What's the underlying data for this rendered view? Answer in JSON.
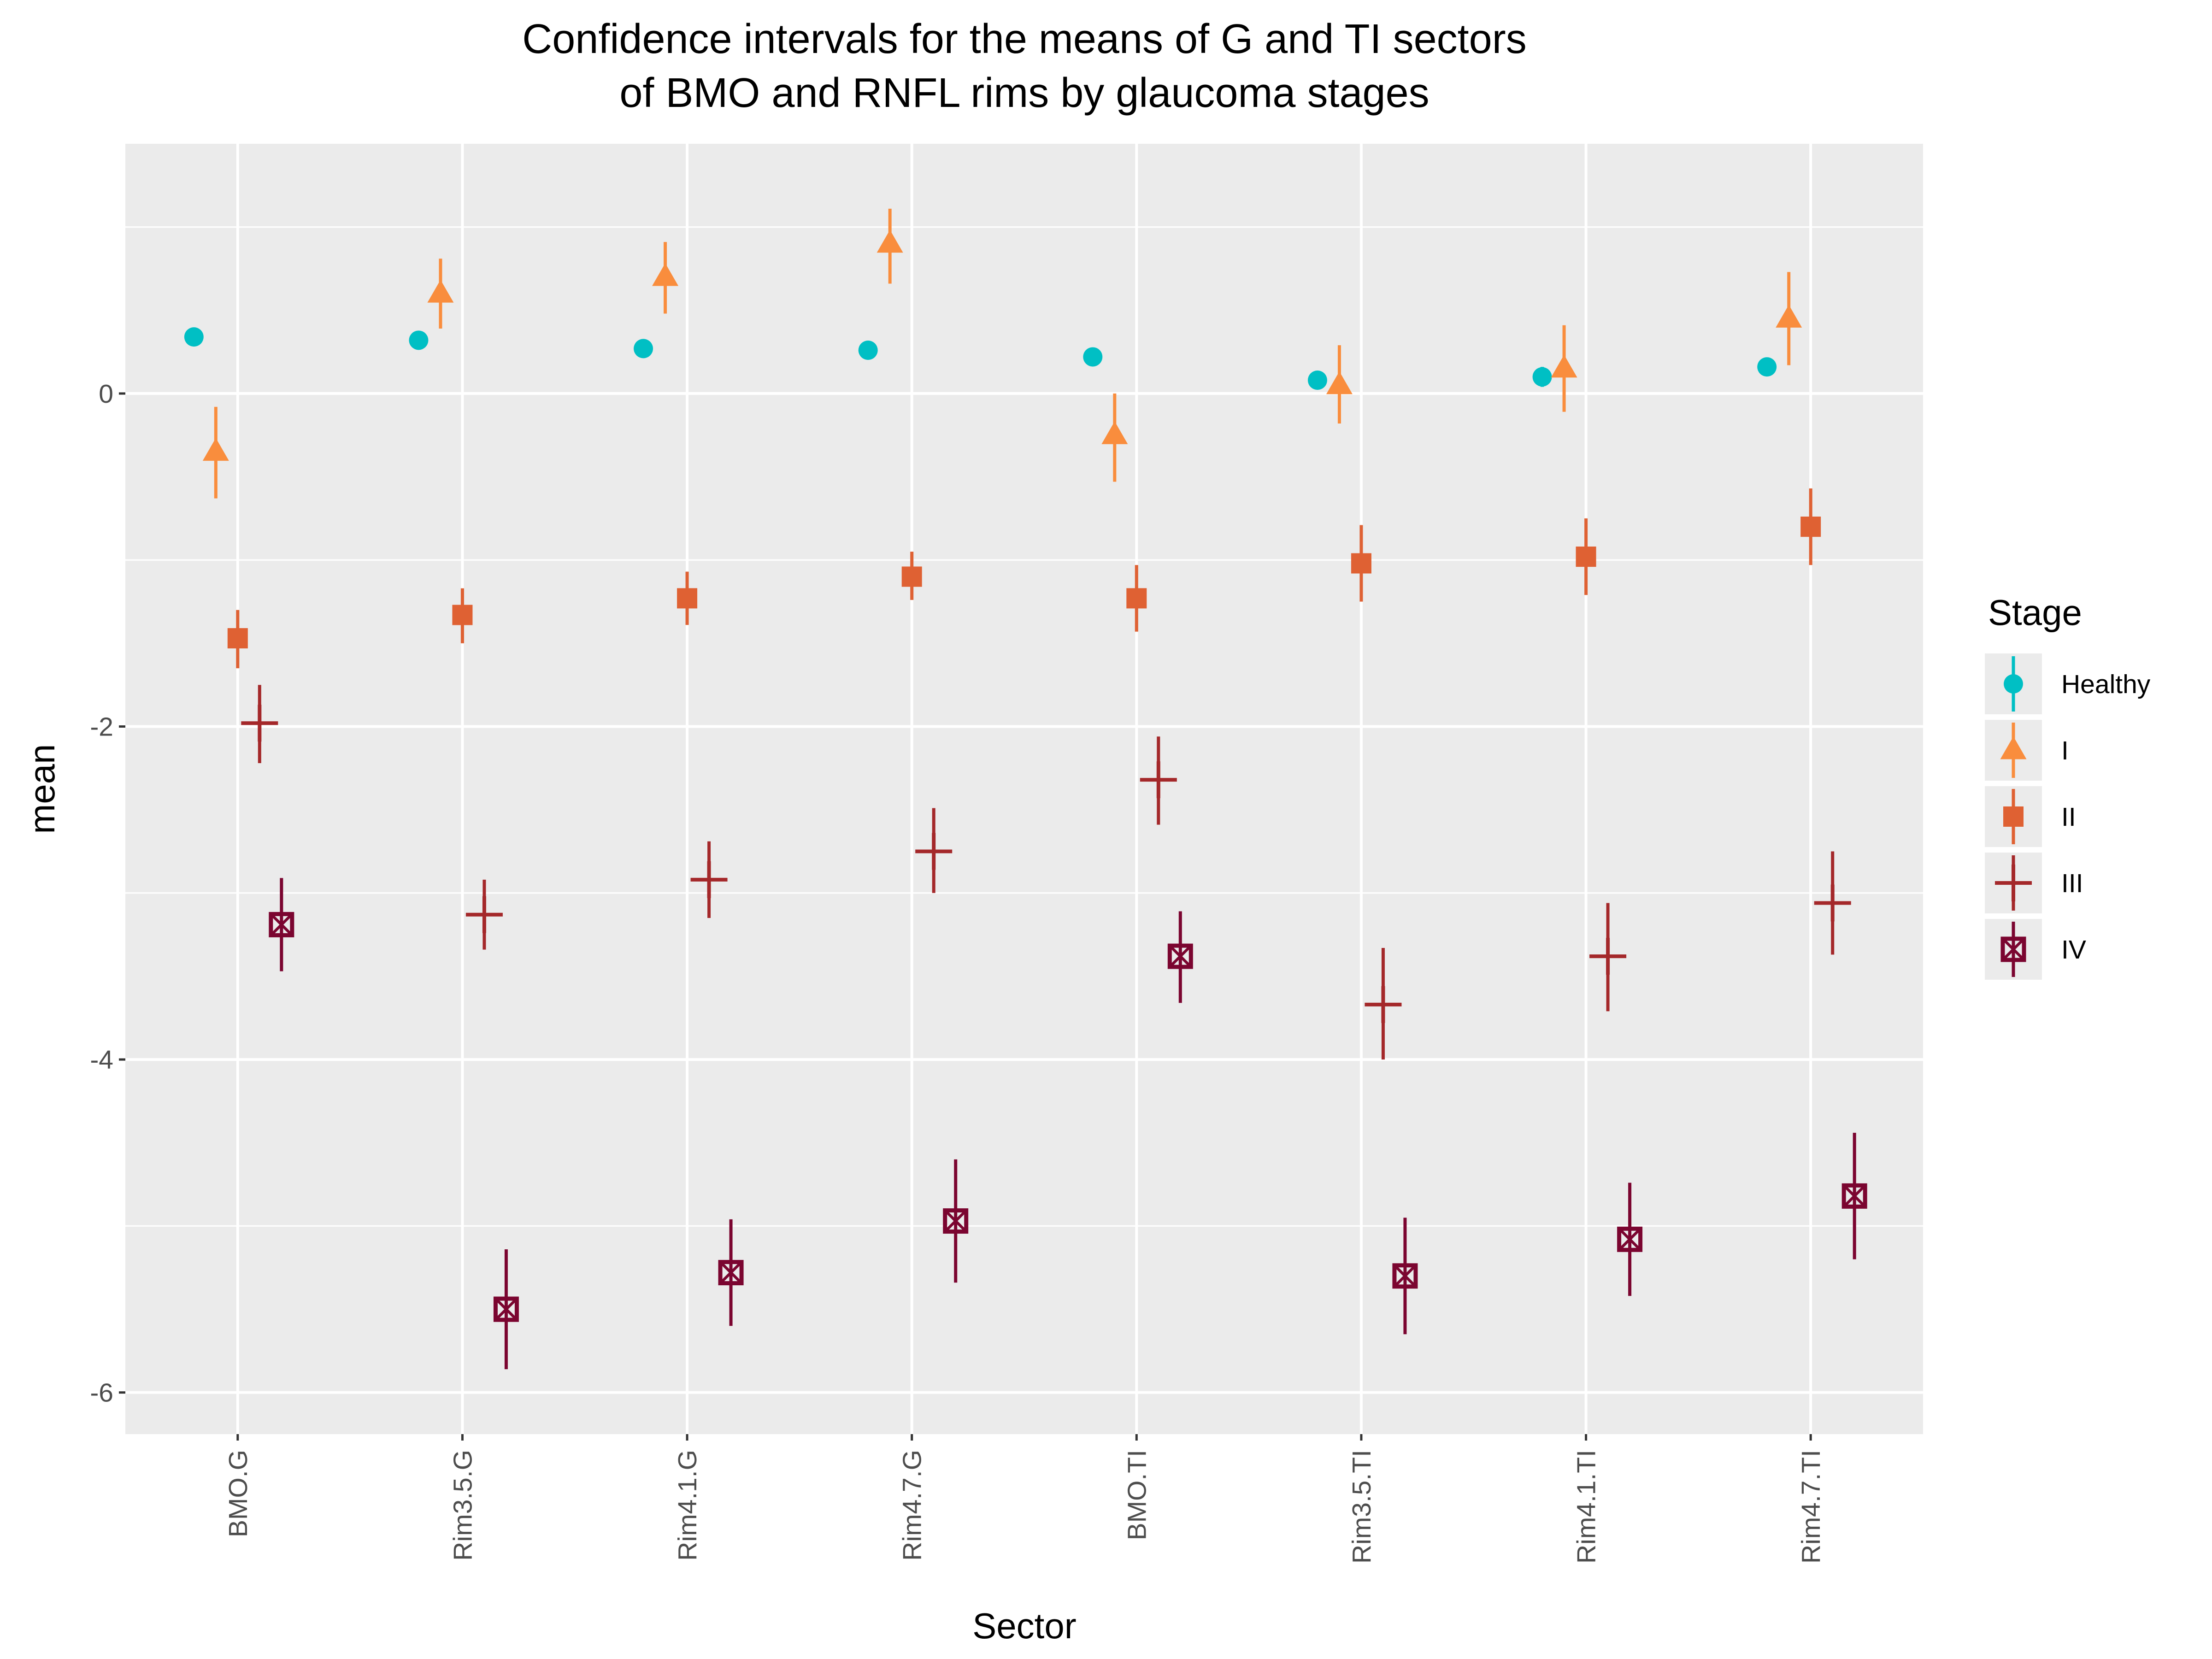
{
  "chart_data": {
    "type": "scatter",
    "title_lines": [
      "Confidence intervals for the means of G and TI sectors",
      "of BMO and RNFL rims by glaucoma stages"
    ],
    "xlabel": "Sector",
    "ylabel": "mean",
    "categories": [
      "BMO.G",
      "Rim3.5.G",
      "Rim4.1.G",
      "Rim4.7.G",
      "BMO.TI",
      "Rim3.5.TI",
      "Rim4.1.TI",
      "Rim4.7.TI"
    ],
    "ylim": [
      -6.25,
      1.5
    ],
    "yticks": [
      0,
      -2,
      -4,
      -6
    ],
    "ytick_labels": [
      "0",
      "-2",
      "-4",
      "-6"
    ],
    "grid": true,
    "legend": {
      "title": "Stage",
      "position": "right"
    },
    "series": [
      {
        "name": "Healthy",
        "color": "#00BFC4",
        "shape": "circle",
        "mean": [
          0.34,
          0.32,
          0.27,
          0.26,
          0.22,
          0.08,
          0.1,
          0.16
        ],
        "lower": [
          0.29,
          0.28,
          0.22,
          0.22,
          0.18,
          0.03,
          0.04,
          0.11
        ],
        "upper": [
          0.39,
          0.37,
          0.32,
          0.3,
          0.27,
          0.13,
          0.16,
          0.21
        ]
      },
      {
        "name": "I",
        "color": "#F98D3D",
        "shape": "triangle",
        "mean": [
          -0.35,
          0.6,
          0.7,
          0.9,
          -0.25,
          0.05,
          0.15,
          0.45
        ],
        "lower": [
          -0.63,
          0.39,
          0.48,
          0.66,
          -0.53,
          -0.18,
          -0.11,
          0.17
        ],
        "upper": [
          -0.08,
          0.81,
          0.91,
          1.11,
          0.0,
          0.29,
          0.41,
          0.73
        ]
      },
      {
        "name": "II",
        "color": "#DF6133",
        "shape": "square",
        "mean": [
          -1.47,
          -1.33,
          -1.23,
          -1.1,
          -1.23,
          -1.02,
          -0.98,
          -0.8
        ],
        "lower": [
          -1.65,
          -1.5,
          -1.39,
          -1.24,
          -1.43,
          -1.25,
          -1.21,
          -1.03
        ],
        "upper": [
          -1.3,
          -1.17,
          -1.07,
          -0.95,
          -1.03,
          -0.79,
          -0.75,
          -0.57
        ]
      },
      {
        "name": "III",
        "color": "#A4282A",
        "shape": "plus",
        "mean": [
          -1.98,
          -3.13,
          -2.92,
          -2.75,
          -2.32,
          -3.67,
          -3.38,
          -3.06
        ],
        "lower": [
          -2.22,
          -3.34,
          -3.15,
          -3.0,
          -2.59,
          -4.0,
          -3.71,
          -3.37
        ],
        "upper": [
          -1.75,
          -2.92,
          -2.69,
          -2.49,
          -2.06,
          -3.33,
          -3.06,
          -2.75
        ]
      },
      {
        "name": "IV",
        "color": "#7B0530",
        "shape": "boxx",
        "mean": [
          -3.19,
          -5.5,
          -5.28,
          -4.97,
          -3.38,
          -5.3,
          -5.08,
          -4.82
        ],
        "lower": [
          -3.47,
          -5.86,
          -5.6,
          -5.34,
          -3.66,
          -5.65,
          -5.42,
          -5.2
        ],
        "upper": [
          -2.91,
          -5.14,
          -4.96,
          -4.6,
          -3.11,
          -4.95,
          -4.74,
          -4.44
        ]
      }
    ]
  }
}
